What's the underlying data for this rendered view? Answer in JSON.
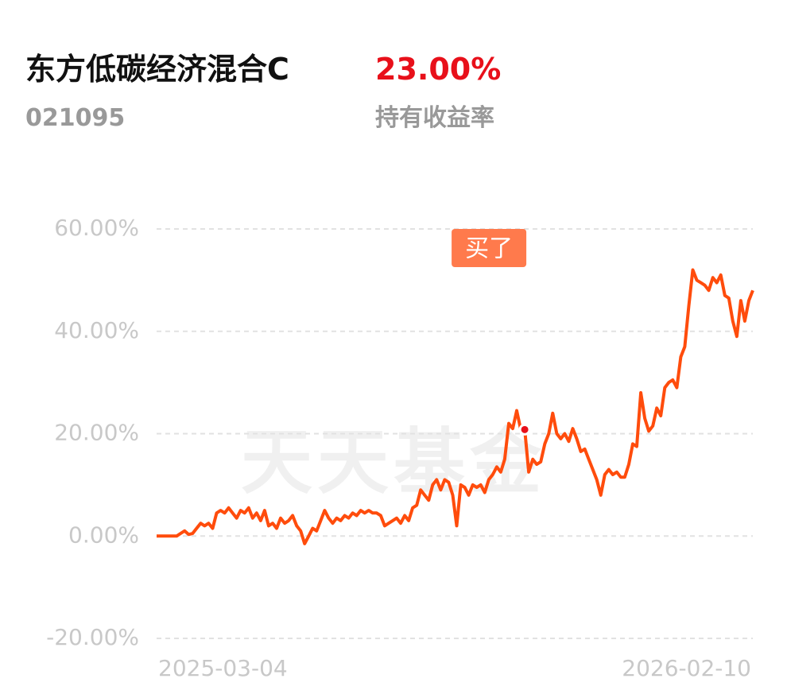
{
  "header": {
    "title": "东方低碳经济混合C",
    "code": "021095",
    "return_value": "23.00%",
    "return_label": "持有收益率"
  },
  "chart_data": {
    "type": "line",
    "watermark": "天天基金",
    "categories": [
      "2025-03-04",
      null,
      null,
      null,
      null,
      null,
      null,
      null,
      null,
      null,
      null,
      null,
      null,
      null,
      null,
      null,
      null,
      null,
      null,
      null,
      null,
      null,
      null,
      null,
      null,
      null,
      null,
      null,
      null,
      null,
      null,
      null,
      null,
      null,
      null,
      null,
      null,
      null,
      null,
      null,
      null,
      null,
      null,
      null,
      null,
      null,
      null,
      null,
      null,
      null,
      null,
      null,
      null,
      null,
      null,
      null,
      null,
      null,
      null,
      null,
      null,
      null,
      null,
      null,
      null,
      null,
      null,
      null,
      null,
      null,
      null,
      null,
      null,
      null,
      null,
      null,
      null,
      null,
      null,
      null,
      null,
      null,
      null,
      null,
      null,
      null,
      null,
      null,
      null,
      null,
      null,
      null,
      null,
      null,
      null,
      null,
      null,
      null,
      null,
      null,
      null,
      null,
      null,
      null,
      null,
      null,
      null,
      null,
      null,
      null,
      null,
      null,
      null,
      null,
      null,
      null,
      null,
      null,
      null,
      null,
      null,
      null,
      null,
      null,
      null,
      null,
      null,
      null,
      null,
      null,
      null,
      null,
      null,
      null,
      null,
      null,
      null,
      null,
      null,
      null,
      null,
      null,
      null,
      null,
      null,
      null,
      null,
      null,
      null,
      "2026-02-10"
    ],
    "series": [
      {
        "color": "#ff4c0c",
        "values": [
          0,
          0,
          0,
          0,
          0,
          0,
          0.5,
          1,
          0.3,
          0.5,
          1.5,
          2.5,
          2,
          2.5,
          1.5,
          4.5,
          5,
          4.5,
          5.5,
          4.5,
          3.5,
          5,
          4.5,
          5.5,
          3.5,
          4.5,
          3,
          5,
          2,
          2.5,
          1.5,
          3.5,
          2.5,
          3,
          4,
          2,
          1,
          -1.5,
          0,
          1.5,
          1,
          3,
          5,
          3.5,
          2.5,
          3.5,
          3,
          4,
          3.5,
          4.5,
          4,
          5,
          4.5,
          5,
          4.5,
          4.5,
          4,
          2,
          2.5,
          3,
          3.5,
          2.5,
          4,
          3,
          5.5,
          6,
          9,
          8,
          7,
          10,
          11,
          9,
          11,
          10.5,
          8,
          2,
          10,
          9.5,
          8,
          10,
          9.5,
          10,
          8.5,
          11,
          12,
          13.5,
          12.5,
          15,
          22,
          21,
          24.5,
          20.8,
          20.8,
          12.5,
          15,
          14,
          14.5,
          18,
          20,
          24,
          20,
          19,
          20,
          18.5,
          21,
          19,
          16.5,
          17,
          15,
          13,
          11,
          8,
          12,
          13,
          12,
          12.5,
          11.5,
          11.5,
          14,
          18,
          17.5,
          28,
          23,
          20.5,
          21.5,
          25,
          23.5,
          29,
          30,
          30.5,
          29,
          35,
          37,
          45,
          52,
          50,
          49.5,
          49,
          48,
          50.5,
          49.5,
          51,
          47,
          46.5,
          42,
          39,
          46,
          42,
          46,
          48
        ]
      }
    ],
    "buy_point": 92,
    "buy_label": "买了",
    "ylim": [
      -20,
      60
    ],
    "yticks": [
      {
        "value": -20,
        "label": "-20.00%"
      },
      {
        "value": 0,
        "label": "0.00%"
      },
      {
        "value": 20,
        "label": "20.00%"
      },
      {
        "value": 40,
        "label": "40.00%"
      },
      {
        "value": 60,
        "label": "60.00%"
      }
    ],
    "grid": true
  }
}
